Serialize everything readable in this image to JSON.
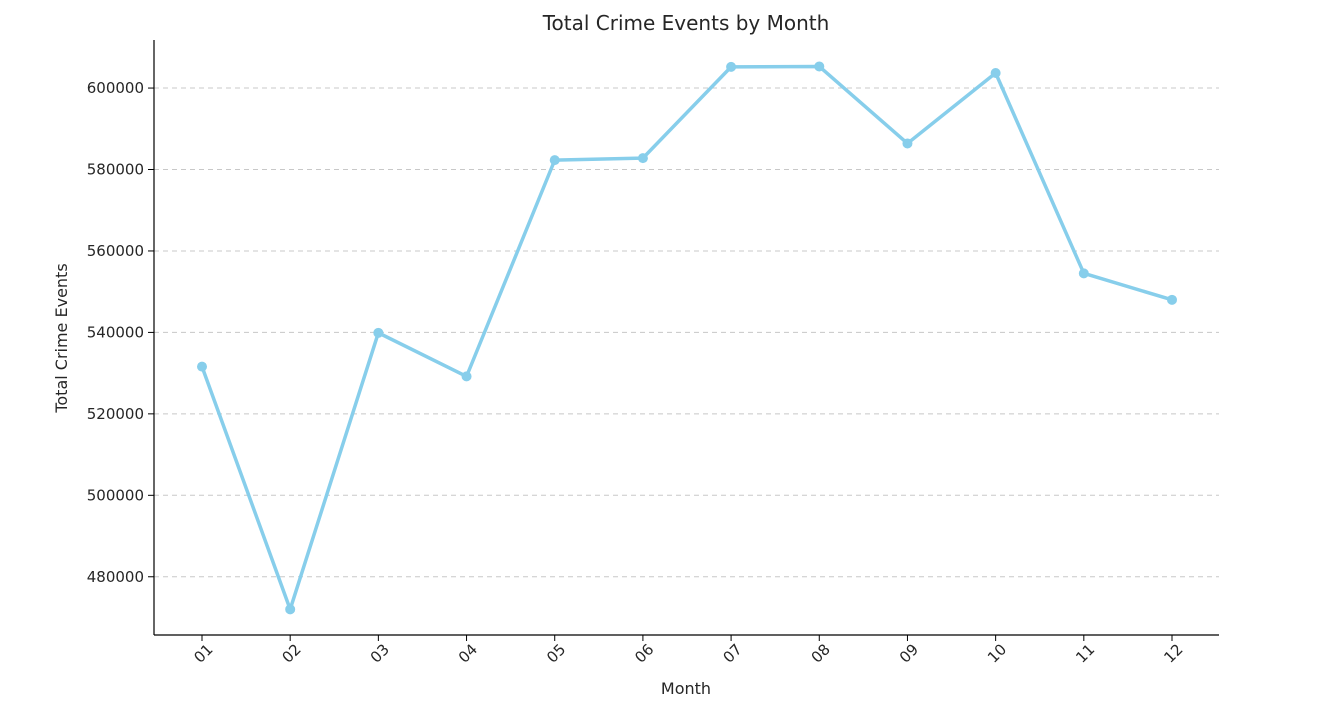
{
  "chart_data": {
    "type": "line",
    "title": "Total Crime Events by Month",
    "xlabel": "Month",
    "ylabel": "Total Crime Events",
    "categories": [
      "01",
      "02",
      "03",
      "04",
      "05",
      "06",
      "07",
      "08",
      "09",
      "10",
      "11",
      "12"
    ],
    "series": [
      {
        "values": [
          531600,
          472000,
          539900,
          529200,
          582300,
          582800,
          605200,
          605300,
          586400,
          603700,
          554500,
          548000
        ]
      }
    ],
    "ylim": [
      465700,
      611800
    ],
    "yticks": [
      480000,
      500000,
      520000,
      540000,
      560000,
      580000,
      600000
    ],
    "ytick_labels": [
      "480000",
      "500000",
      "520000",
      "540000",
      "560000",
      "580000",
      "600000"
    ],
    "grid": "y-dashed",
    "line_color": "#87ceeb",
    "grid_color": "#c8c8c8"
  }
}
